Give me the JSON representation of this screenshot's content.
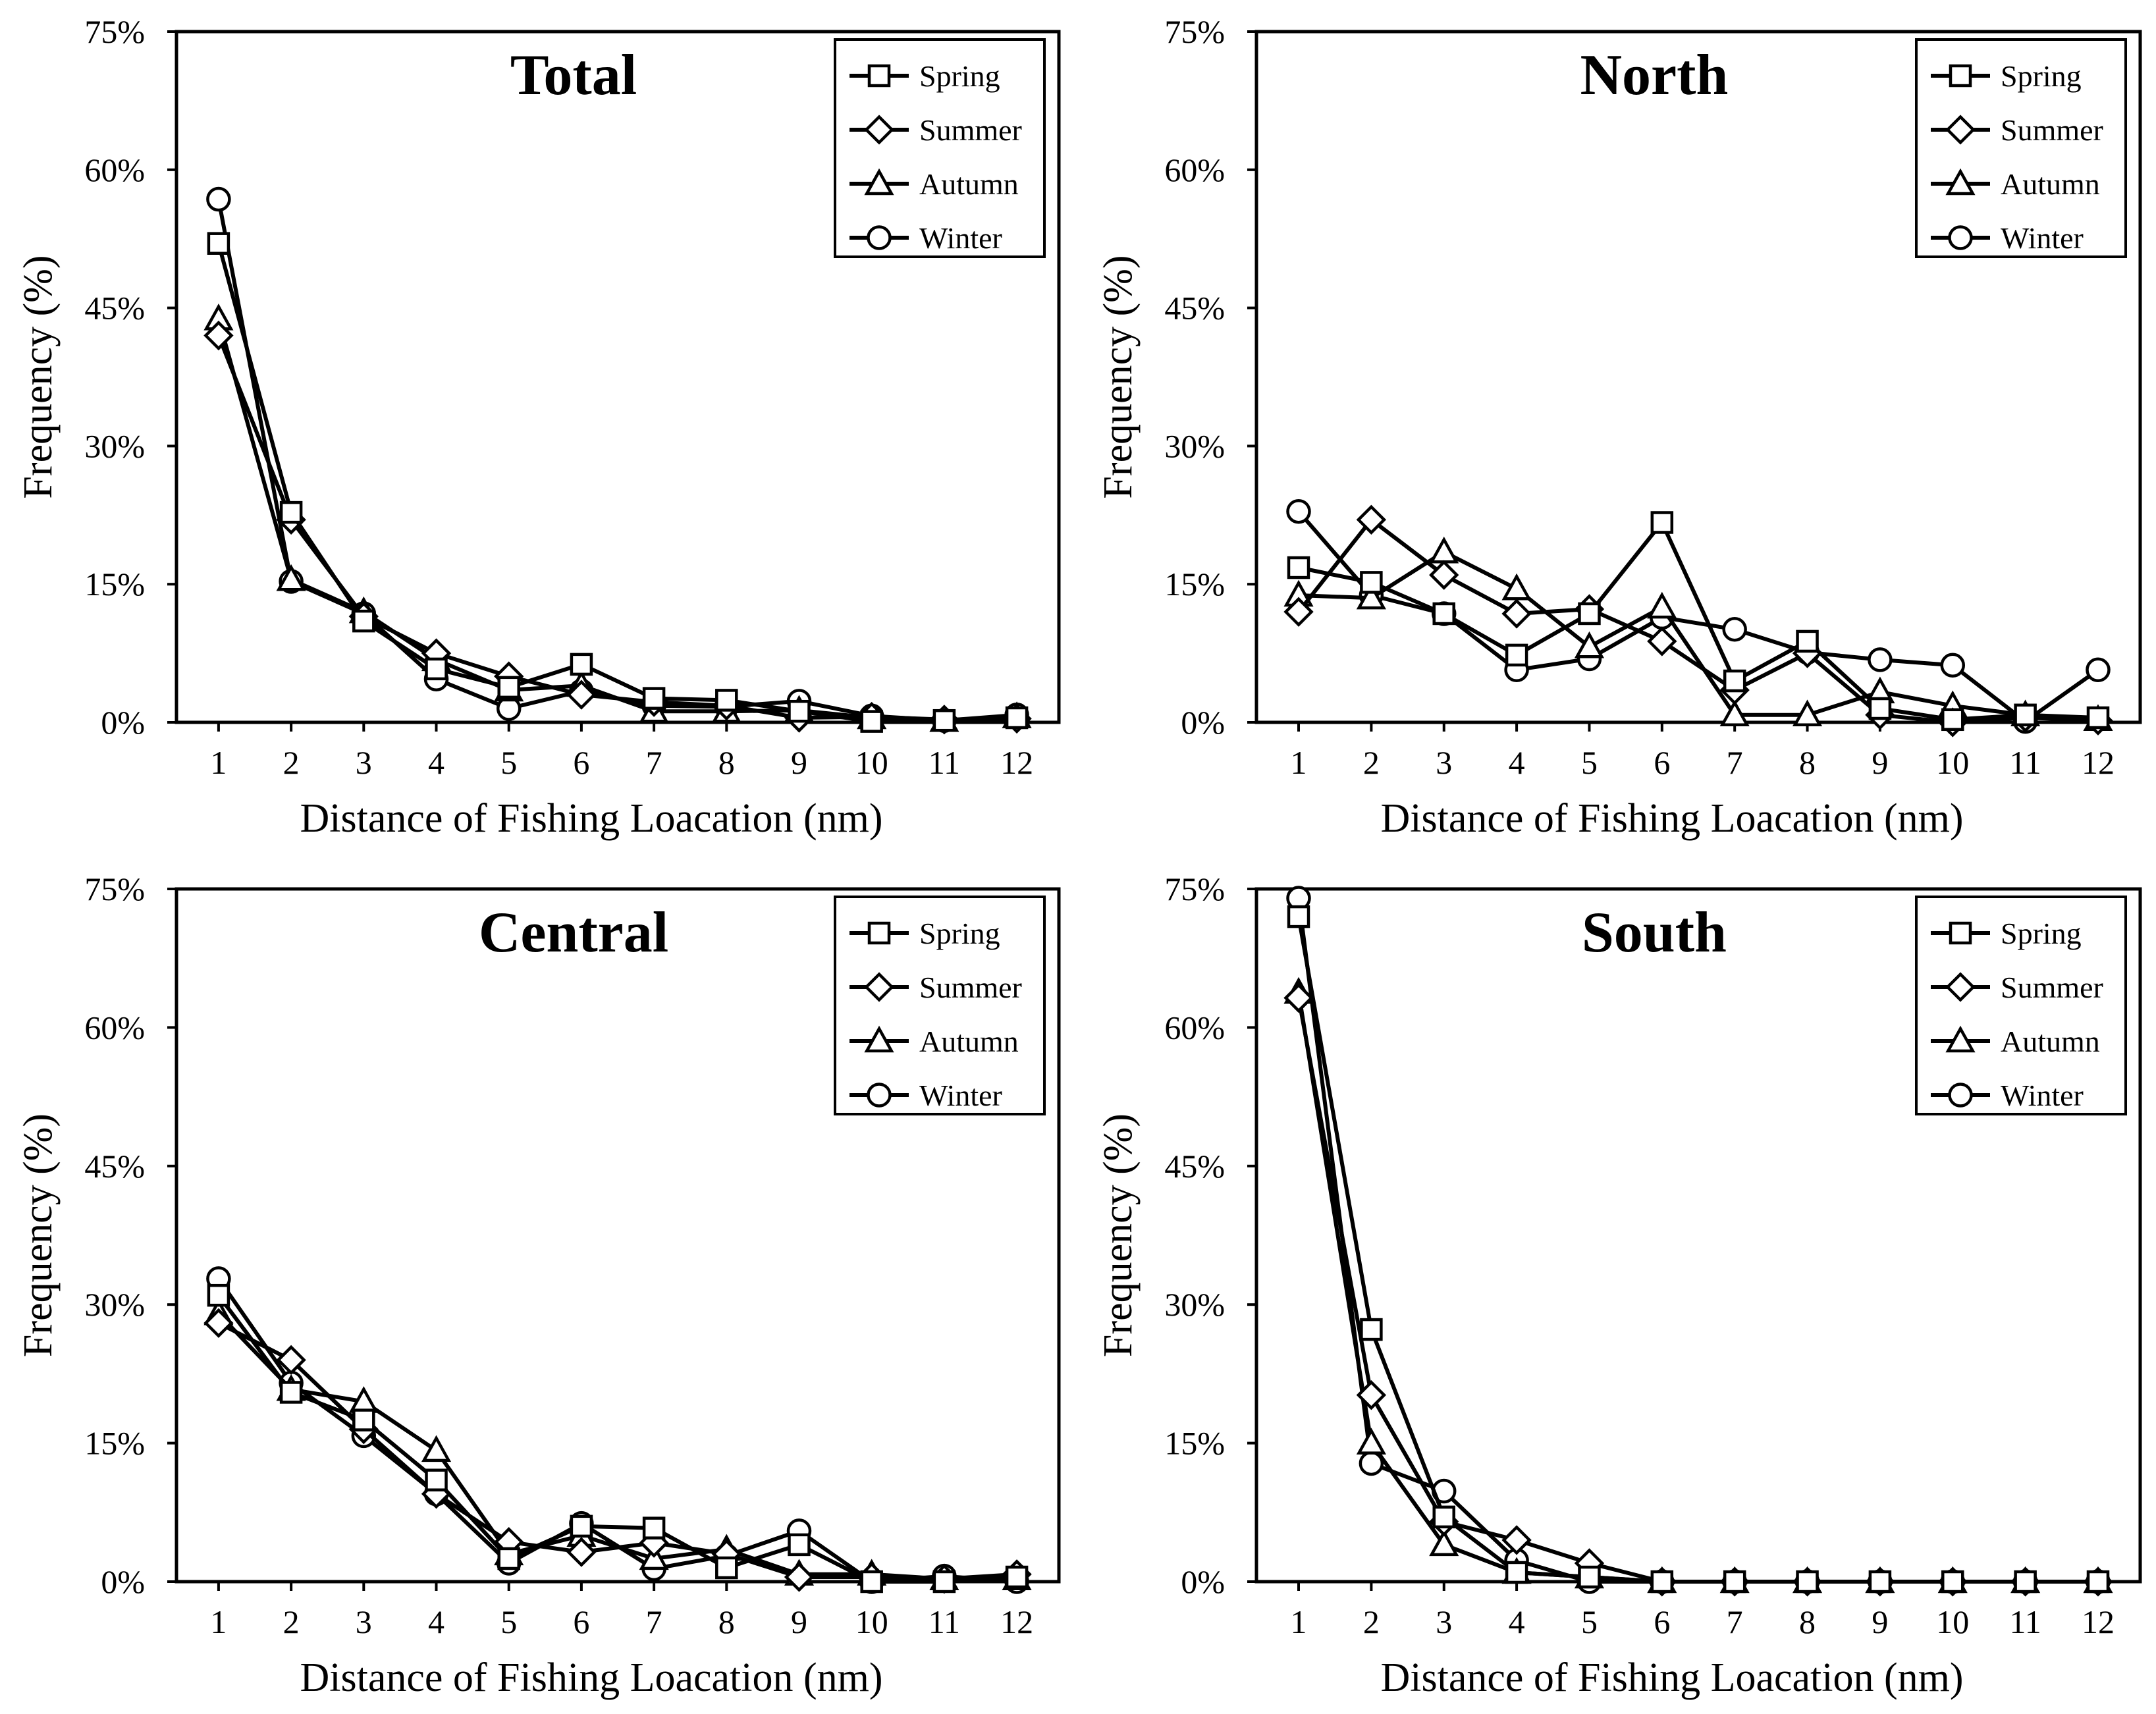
{
  "chart_data": [
    {
      "type": "line",
      "title": "Total",
      "xlabel": "Distance of Fishing Loacation (nm)",
      "ylabel": "Frequency (%)",
      "x": [
        1,
        2,
        3,
        4,
        5,
        6,
        7,
        8,
        9,
        10,
        11,
        12
      ],
      "ylim": [
        0,
        75
      ],
      "yticks": [
        "0%",
        "15%",
        "30%",
        "45%",
        "60%",
        "75%"
      ],
      "legend_position": "top-right",
      "series": [
        {
          "name": "Spring",
          "marker": "square",
          "values": [
            52,
            22.8,
            11,
            5.8,
            3.8,
            6.3,
            2.6,
            2.4,
            1.2,
            0.1,
            0.2,
            0.5
          ]
        },
        {
          "name": "Summer",
          "marker": "diamond",
          "values": [
            42,
            22,
            11.5,
            7.5,
            5,
            3,
            2.2,
            1.8,
            0.5,
            0.6,
            0.3,
            0.4
          ]
        },
        {
          "name": "Autumn",
          "marker": "triangle",
          "values": [
            43.8,
            15.5,
            12,
            6.8,
            3.5,
            4,
            1.2,
            1.2,
            1.3,
            0.5,
            0.2,
            0.6
          ]
        },
        {
          "name": "Winter",
          "marker": "circle",
          "values": [
            56.8,
            15.3,
            11.8,
            4.7,
            1.5,
            3.4,
            1.8,
            1.7,
            2.3,
            0.7,
            0.2,
            0.8
          ]
        }
      ]
    },
    {
      "type": "line",
      "title": "North",
      "xlabel": "Distance of Fishing Loacation (nm)",
      "ylabel": "Frequency (%)",
      "x": [
        1,
        2,
        3,
        4,
        5,
        6,
        7,
        8,
        9,
        10,
        11,
        12
      ],
      "ylim": [
        0,
        75
      ],
      "yticks": [
        "0%",
        "15%",
        "30%",
        "45%",
        "60%",
        "75%"
      ],
      "legend_position": "top-right",
      "series": [
        {
          "name": "Spring",
          "marker": "square",
          "values": [
            16.8,
            15.2,
            11.8,
            7.3,
            11.8,
            21.7,
            4.5,
            8.8,
            1.5,
            0.3,
            0.8,
            0.5
          ]
        },
        {
          "name": "Summer",
          "marker": "diamond",
          "values": [
            12,
            22,
            16,
            11.8,
            12.3,
            8.8,
            3.5,
            7.5,
            0.8,
            0,
            0.5,
            0.2
          ]
        },
        {
          "name": "Autumn",
          "marker": "triangle",
          "values": [
            13.8,
            13.5,
            18.5,
            14.5,
            8.2,
            12.5,
            0.8,
            0.8,
            3.3,
            1.8,
            0.8,
            0.3
          ]
        },
        {
          "name": "Winter",
          "marker": "circle",
          "values": [
            22.9,
            13.8,
            11.8,
            5.7,
            6.9,
            11.4,
            10.1,
            7.6,
            6.8,
            6.2,
            0.1,
            5.7
          ]
        }
      ]
    },
    {
      "type": "line",
      "title": "Central",
      "xlabel": "Distance of Fishing Loacation (nm)",
      "ylabel": "Frequency (%)",
      "x": [
        1,
        2,
        3,
        4,
        5,
        6,
        7,
        8,
        9,
        10,
        11,
        12
      ],
      "ylim": [
        0,
        75
      ],
      "yticks": [
        "0%",
        "15%",
        "30%",
        "45%",
        "60%",
        "75%"
      ],
      "legend_position": "top-right",
      "series": [
        {
          "name": "Spring",
          "marker": "square",
          "values": [
            31,
            20.5,
            17.5,
            11,
            2.5,
            6,
            5.8,
            1.5,
            4,
            0,
            0,
            0.5
          ]
        },
        {
          "name": "Summer",
          "marker": "diamond",
          "values": [
            28,
            24,
            16.5,
            9.5,
            4.3,
            3.2,
            4.2,
            3,
            0.5,
            0.5,
            0.3,
            0.8
          ]
        },
        {
          "name": "Autumn",
          "marker": "triangle",
          "values": [
            29,
            20.8,
            19.5,
            14.2,
            3,
            5,
            2.5,
            3.5,
            0.8,
            0.8,
            0.3,
            0.3
          ]
        },
        {
          "name": "Winter",
          "marker": "circle",
          "values": [
            32.8,
            21.5,
            15.8,
            9.5,
            2,
            6.3,
            1.4,
            2.8,
            5.5,
            0,
            0.6,
            0
          ]
        }
      ]
    },
    {
      "type": "line",
      "title": "South",
      "xlabel": "Distance of Fishing Loacation (nm)",
      "ylabel": "Frequency (%)",
      "x": [
        1,
        2,
        3,
        4,
        5,
        6,
        7,
        8,
        9,
        10,
        11,
        12
      ],
      "ylim": [
        0,
        75
      ],
      "yticks": [
        "0%",
        "15%",
        "30%",
        "45%",
        "60%",
        "75%"
      ],
      "legend_position": "top-right",
      "series": [
        {
          "name": "Spring",
          "marker": "square",
          "values": [
            72,
            27.3,
            7,
            1,
            0.5,
            0,
            0,
            0,
            0,
            0,
            0,
            0
          ]
        },
        {
          "name": "Summer",
          "marker": "diamond",
          "values": [
            63.2,
            20.2,
            6.5,
            4.5,
            2,
            0,
            0,
            0,
            0,
            0,
            0,
            0
          ]
        },
        {
          "name": "Autumn",
          "marker": "triangle",
          "values": [
            63.8,
            15,
            4,
            1,
            0.5,
            0,
            0,
            0,
            0,
            0,
            0,
            0
          ]
        },
        {
          "name": "Winter",
          "marker": "circle",
          "values": [
            74,
            12.8,
            9.8,
            2.3,
            0,
            0,
            0,
            0,
            0,
            0,
            0,
            0
          ]
        }
      ]
    }
  ]
}
